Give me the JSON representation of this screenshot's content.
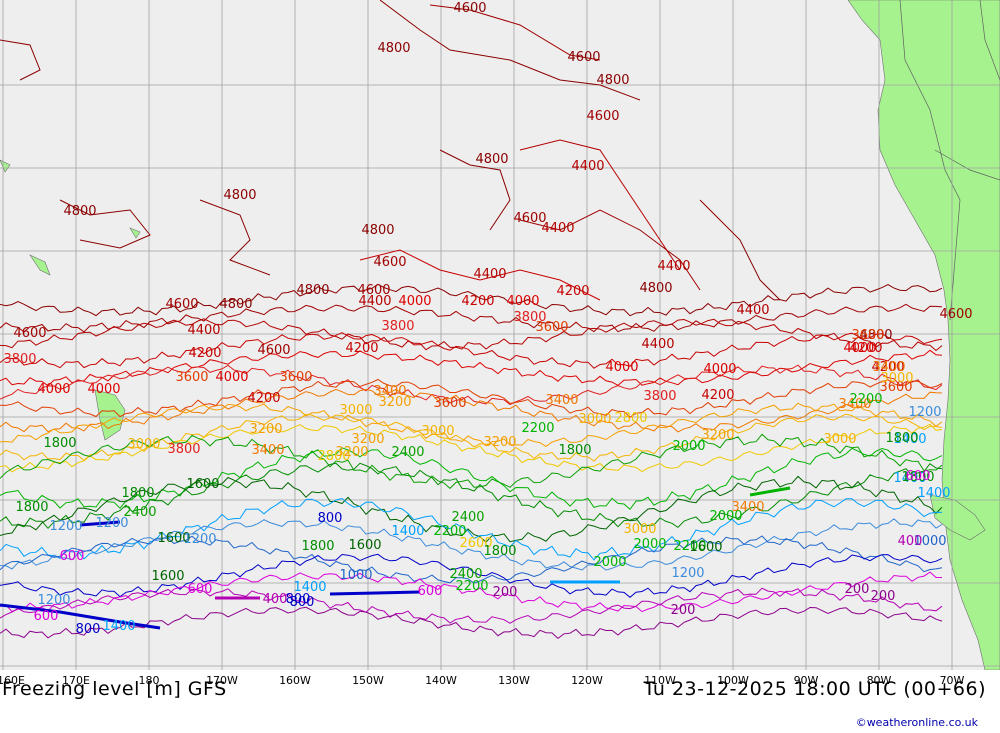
{
  "title": "Freezing level [m] GFS",
  "valid_time": "Tu 23-12-2025 18:00 UTC (00+66)",
  "credit": "©weatheronline.co.uk",
  "longitude_labels": [
    "160E",
    "170E",
    "180",
    "170W",
    "160W",
    "150W",
    "140W",
    "130W",
    "120W",
    "110W",
    "100W",
    "90W",
    "80W",
    "70W"
  ],
  "colors": {
    "ocean": "#eeeeee",
    "land": "#a6f28f",
    "grid": "#a0a0a0",
    "c4800": "#8b0000",
    "c4600": "#a00000",
    "c4400": "#b40000",
    "c4200": "#c80000",
    "c4000": "#dc0000",
    "c3800": "#e02020",
    "c3600": "#e03c00",
    "c3400": "#f07800",
    "c3200": "#f5a000",
    "c3000": "#f5b400",
    "c2800": "#f0c800",
    "c2400": "#0aa000",
    "c2000": "#00b400",
    "c1800": "#008c00",
    "c1600": "#006400",
    "c1400": "#00a0ff",
    "c1200": "#3c8cdc",
    "c1000": "#1e64c8",
    "c800": "#0000c8",
    "c600": "#dc00dc",
    "c400": "#b400b4",
    "c200": "#8c008c"
  },
  "contour_labels": [
    {
      "text": "4600",
      "color": "#8b0000"
    },
    {
      "text": "4800",
      "color": "#8b0000"
    },
    {
      "text": "4600",
      "color": "#8b0000"
    },
    {
      "text": "4800",
      "color": "#8b0000"
    },
    {
      "text": "4600",
      "color": "#a00000"
    },
    {
      "text": "4800",
      "color": "#8b0000"
    },
    {
      "text": "4400",
      "color": "#b40000"
    },
    {
      "text": "4800",
      "color": "#8b0000"
    },
    {
      "text": "4800",
      "color": "#8b0000"
    },
    {
      "text": "4600",
      "color": "#a00000"
    },
    {
      "text": "4400",
      "color": "#b40000"
    },
    {
      "text": "4800",
      "color": "#8b0000"
    },
    {
      "text": "4600",
      "color": "#a00000"
    },
    {
      "text": "4400",
      "color": "#b40000"
    },
    {
      "text": "4800",
      "color": "#8b0000"
    },
    {
      "text": "4600",
      "color": "#a00000"
    },
    {
      "text": "4400",
      "color": "#b40000"
    },
    {
      "text": "4600",
      "color": "#a00000"
    },
    {
      "text": "4800",
      "color": "#8b0000"
    },
    {
      "text": "4400",
      "color": "#b40000"
    },
    {
      "text": "4000",
      "color": "#dc0000"
    },
    {
      "text": "4200",
      "color": "#c80000"
    },
    {
      "text": "4000",
      "color": "#dc0000"
    },
    {
      "text": "4200",
      "color": "#c80000"
    },
    {
      "text": "4400",
      "color": "#b40000"
    },
    {
      "text": "4800",
      "color": "#8b0000"
    },
    {
      "text": "4600",
      "color": "#a00000"
    },
    {
      "text": "4800",
      "color": "#8b0000"
    },
    {
      "text": "4600",
      "color": "#a00000"
    },
    {
      "text": "4400",
      "color": "#b40000"
    },
    {
      "text": "3800",
      "color": "#e02020"
    },
    {
      "text": "3800",
      "color": "#e02020"
    },
    {
      "text": "3600",
      "color": "#e03c00"
    },
    {
      "text": "4200",
      "color": "#c80000"
    },
    {
      "text": "4600",
      "color": "#a00000"
    },
    {
      "text": "4200",
      "color": "#c80000"
    },
    {
      "text": "4400",
      "color": "#b40000"
    },
    {
      "text": "4200",
      "color": "#c80000"
    },
    {
      "text": "3800",
      "color": "#e02020"
    },
    {
      "text": "3600",
      "color": "#e03c00"
    },
    {
      "text": "4000",
      "color": "#dc0000"
    },
    {
      "text": "4000",
      "color": "#dc0000"
    },
    {
      "text": "4000",
      "color": "#dc0000"
    },
    {
      "text": "4200",
      "color": "#c80000"
    },
    {
      "text": "4000",
      "color": "#dc0000"
    },
    {
      "text": "4000",
      "color": "#dc0000"
    },
    {
      "text": "3600",
      "color": "#e03c00"
    },
    {
      "text": "3400",
      "color": "#f07800"
    },
    {
      "text": "3200",
      "color": "#f5a000"
    },
    {
      "text": "3600",
      "color": "#e03c00"
    },
    {
      "text": "3800",
      "color": "#e02020"
    },
    {
      "text": "4200",
      "color": "#c80000"
    },
    {
      "text": "3600",
      "color": "#e03c00"
    },
    {
      "text": "3400",
      "color": "#f07800"
    },
    {
      "text": "4200",
      "color": "#c80000"
    },
    {
      "text": "3400",
      "color": "#f07800"
    },
    {
      "text": "3000",
      "color": "#f5b400"
    },
    {
      "text": "3200",
      "color": "#f5a000"
    },
    {
      "text": "3000",
      "color": "#f5b400"
    },
    {
      "text": "2800",
      "color": "#f0c800"
    },
    {
      "text": "3200",
      "color": "#f5a000"
    },
    {
      "text": "3000",
      "color": "#f5b400"
    },
    {
      "text": "3400",
      "color": "#f07800"
    },
    {
      "text": "3000",
      "color": "#f5b400"
    },
    {
      "text": "2200",
      "color": "#00b400"
    },
    {
      "text": "3800",
      "color": "#e02020"
    },
    {
      "text": "3400",
      "color": "#f07800"
    },
    {
      "text": "3200",
      "color": "#f5a000"
    },
    {
      "text": "2000",
      "color": "#00b400"
    },
    {
      "text": "1800",
      "color": "#008c00"
    },
    {
      "text": "3200",
      "color": "#f5a000"
    },
    {
      "text": "3000",
      "color": "#f5b400"
    },
    {
      "text": "2400",
      "color": "#0aa000"
    },
    {
      "text": "2800",
      "color": "#f0c800"
    },
    {
      "text": "3200",
      "color": "#f5a000"
    },
    {
      "text": "2400",
      "color": "#0aa000"
    },
    {
      "text": "1800",
      "color": "#008c00"
    },
    {
      "text": "1600",
      "color": "#006400"
    },
    {
      "text": "2400",
      "color": "#0aa000"
    },
    {
      "text": "1800",
      "color": "#008c00"
    },
    {
      "text": "1400",
      "color": "#00a0ff"
    },
    {
      "text": "1800",
      "color": "#008c00"
    },
    {
      "text": "1200",
      "color": "#3c8cdc"
    },
    {
      "text": "1200",
      "color": "#3c8cdc"
    },
    {
      "text": "800",
      "color": "#0000c8"
    },
    {
      "text": "1600",
      "color": "#006400"
    },
    {
      "text": "1200",
      "color": "#3c8cdc"
    },
    {
      "text": "1600",
      "color": "#006400"
    },
    {
      "text": "1800",
      "color": "#008c00"
    },
    {
      "text": "1400",
      "color": "#00a0ff"
    },
    {
      "text": "2200",
      "color": "#00b400"
    },
    {
      "text": "2600",
      "color": "#f0c800"
    },
    {
      "text": "3000",
      "color": "#f5b400"
    },
    {
      "text": "2000",
      "color": "#00b400"
    },
    {
      "text": "2000",
      "color": "#00b400"
    },
    {
      "text": "2200",
      "color": "#00b400"
    },
    {
      "text": "1800",
      "color": "#008c00"
    },
    {
      "text": "2400",
      "color": "#0aa000"
    },
    {
      "text": "2000",
      "color": "#00b400"
    },
    {
      "text": "2200",
      "color": "#00b400"
    },
    {
      "text": "1600",
      "color": "#006400"
    },
    {
      "text": "1000",
      "color": "#1e64c8"
    },
    {
      "text": "1200",
      "color": "#3c8cdc"
    },
    {
      "text": "1600",
      "color": "#006400"
    },
    {
      "text": "1800",
      "color": "#008c00"
    },
    {
      "text": "1400",
      "color": "#00a0ff"
    },
    {
      "text": "1400",
      "color": "#00a0ff"
    },
    {
      "text": "1200",
      "color": "#3c8cdc"
    },
    {
      "text": "800",
      "color": "#0000c8"
    },
    {
      "text": "600",
      "color": "#dc00dc"
    },
    {
      "text": "1000",
      "color": "#1e64c8"
    },
    {
      "text": "600",
      "color": "#dc00dc"
    },
    {
      "text": "400",
      "color": "#b400b4"
    },
    {
      "text": "800",
      "color": "#0000c8"
    },
    {
      "text": "600",
      "color": "#dc00dc"
    },
    {
      "text": "800",
      "color": "#0000c8"
    },
    {
      "text": "1400",
      "color": "#00a0ff"
    },
    {
      "text": "600",
      "color": "#dc00dc"
    },
    {
      "text": "200",
      "color": "#8c008c"
    },
    {
      "text": "200",
      "color": "#8c008c"
    },
    {
      "text": "200",
      "color": "#8c008c"
    },
    {
      "text": "200",
      "color": "#8c008c"
    },
    {
      "text": "400",
      "color": "#b400b4"
    },
    {
      "text": "600",
      "color": "#dc00dc"
    },
    {
      "text": "1400",
      "color": "#00a0ff"
    },
    {
      "text": "1200",
      "color": "#3c8cdc"
    },
    {
      "text": "1800",
      "color": "#008c00"
    },
    {
      "text": "2200",
      "color": "#00b400"
    },
    {
      "text": "3000",
      "color": "#f5b400"
    },
    {
      "text": "3400",
      "color": "#f07800"
    },
    {
      "text": "3600",
      "color": "#e03c00"
    },
    {
      "text": "4000",
      "color": "#dc0000"
    },
    {
      "text": "4600",
      "color": "#a00000"
    },
    {
      "text": "4200",
      "color": "#c80000"
    }
  ]
}
